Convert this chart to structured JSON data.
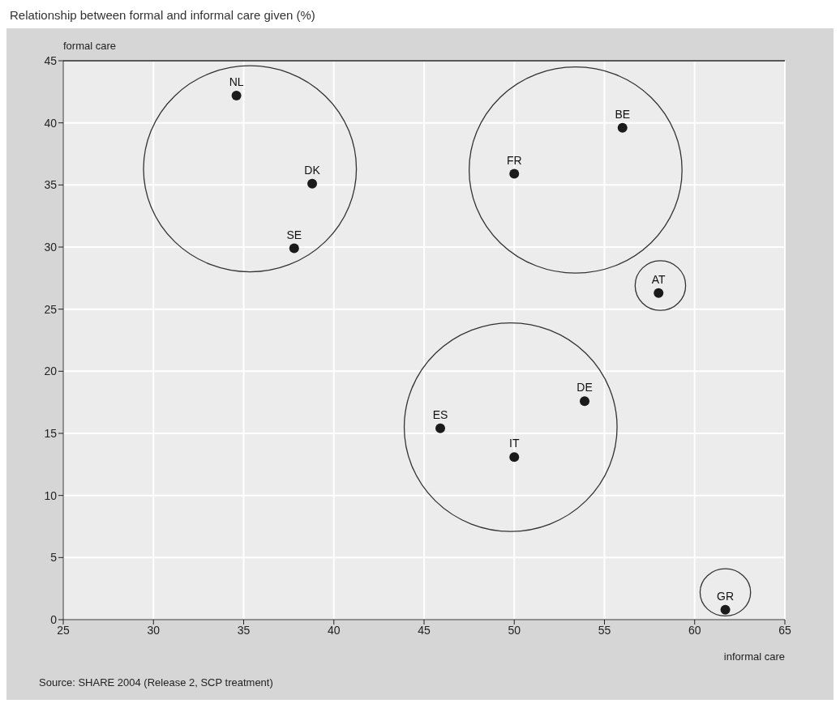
{
  "chart_data": {
    "type": "scatter",
    "title": "Relationship between formal and informal care given (%)",
    "xlabel": "informal care",
    "ylabel": "formal care",
    "x": [
      34.6,
      38.8,
      37.8,
      50.0,
      56.0,
      58.0,
      53.9,
      45.9,
      50.0,
      61.7
    ],
    "values": [
      42.2,
      35.1,
      29.9,
      35.9,
      39.6,
      26.3,
      17.6,
      15.4,
      13.1,
      0.8
    ],
    "color": "#1a1a1a",
    "marker": "circle",
    "xlim": [
      25,
      65
    ],
    "xticks": [
      25,
      30,
      35,
      40,
      45,
      50,
      55,
      60,
      65
    ],
    "ylim": [
      0,
      45
    ],
    "yticks": [
      0,
      5,
      10,
      15,
      20,
      25,
      30,
      35,
      40,
      45
    ],
    "grid": true,
    "annotations": [
      {
        "text": "NL",
        "x": 34.6,
        "y": 42.2
      },
      {
        "text": "DK",
        "x": 38.8,
        "y": 35.1
      },
      {
        "text": "SE",
        "x": 37.8,
        "y": 29.9
      },
      {
        "text": "FR",
        "x": 50.0,
        "y": 35.9
      },
      {
        "text": "BE",
        "x": 56.0,
        "y": 39.6
      },
      {
        "text": "AT",
        "x": 58.0,
        "y": 26.3
      },
      {
        "text": "DE",
        "x": 53.9,
        "y": 17.6
      },
      {
        "text": "ES",
        "x": 45.9,
        "y": 15.4
      },
      {
        "text": "IT",
        "x": 50.0,
        "y": 13.1
      },
      {
        "text": "GR",
        "x": 61.7,
        "y": 0.8
      },
      "Source: SHARE 2004 (Release 2, SCP treatment)"
    ]
  }
}
